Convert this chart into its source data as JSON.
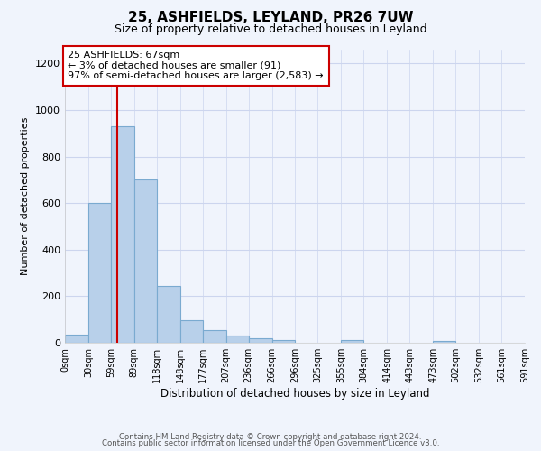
{
  "title": "25, ASHFIELDS, LEYLAND, PR26 7UW",
  "subtitle": "Size of property relative to detached houses in Leyland",
  "xlabel": "Distribution of detached houses by size in Leyland",
  "ylabel": "Number of detached properties",
  "bar_color": "#b8d0ea",
  "bar_edge_color": "#7aaad0",
  "bin_edges": [
    0,
    30,
    59,
    89,
    118,
    148,
    177,
    207,
    236,
    266,
    296,
    325,
    355,
    384,
    414,
    443,
    473,
    502,
    532,
    561,
    591
  ],
  "bin_labels": [
    "0sqm",
    "30sqm",
    "59sqm",
    "89sqm",
    "118sqm",
    "148sqm",
    "177sqm",
    "207sqm",
    "236sqm",
    "266sqm",
    "296sqm",
    "325sqm",
    "355sqm",
    "384sqm",
    "414sqm",
    "443sqm",
    "473sqm",
    "502sqm",
    "532sqm",
    "561sqm",
    "591sqm"
  ],
  "counts": [
    35,
    600,
    930,
    700,
    245,
    95,
    55,
    30,
    18,
    10,
    0,
    0,
    10,
    0,
    0,
    0,
    8,
    0,
    0,
    0
  ],
  "ylim": [
    0,
    1260
  ],
  "yticks": [
    0,
    200,
    400,
    600,
    800,
    1000,
    1200
  ],
  "property_size": 67,
  "property_line_color": "#cc0000",
  "annotation_text_line1": "25 ASHFIELDS: 67sqm",
  "annotation_text_line2": "← 3% of detached houses are smaller (91)",
  "annotation_text_line3": "97% of semi-detached houses are larger (2,583) →",
  "annotation_box_edge": "#cc0000",
  "footer_line1": "Contains HM Land Registry data © Crown copyright and database right 2024.",
  "footer_line2": "Contains public sector information licensed under the Open Government Licence v3.0.",
  "bg_color": "#f0f4fc",
  "grid_color": "#ccd5ee"
}
